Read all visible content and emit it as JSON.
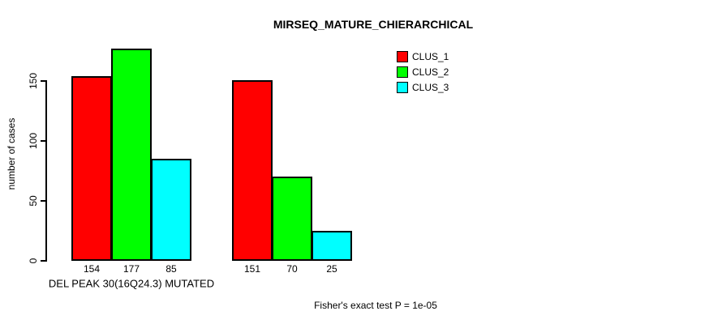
{
  "chart_data": {
    "type": "bar",
    "title": "MIRSEQ_MATURE_CHIERARCHICAL",
    "ylabel": "number of cases",
    "xlabel": "DEL PEAK 30(16Q24.3) MUTATED",
    "group_labels": [
      "DEL PEAK 30(16Q24.3) MUTATED",
      ""
    ],
    "series": [
      {
        "name": "CLUS_1",
        "color": "#ff0000",
        "values": [
          154,
          151
        ]
      },
      {
        "name": "CLUS_2",
        "color": "#00ff00",
        "values": [
          177,
          70
        ]
      },
      {
        "name": "CLUS_3",
        "color": "#00ffff",
        "values": [
          85,
          25
        ]
      }
    ],
    "bar_value_labels": [
      [
        154,
        177,
        85
      ],
      [
        151,
        70,
        25
      ]
    ],
    "yticks": [
      0,
      50,
      100,
      150
    ],
    "ylim": [
      0,
      150
    ],
    "grid": false,
    "legend_position": "top-right",
    "bar_outline_color": "#000000",
    "text_color": "#000000",
    "background_color": "#ffffff",
    "annotation": "Fisher's exact test P = 1e-05"
  }
}
